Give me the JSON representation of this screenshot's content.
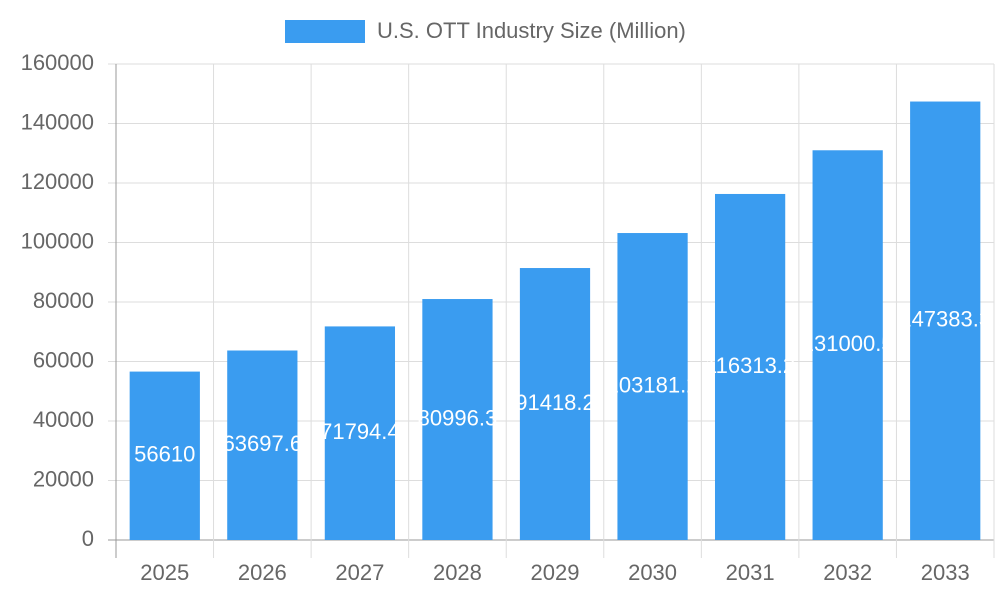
{
  "chart_data": {
    "type": "bar",
    "categories": [
      "2025",
      "2026",
      "2027",
      "2028",
      "2029",
      "2030",
      "2031",
      "2032",
      "2033"
    ],
    "series": [
      {
        "name": "U.S. OTT Industry Size (Million)",
        "color": "#3a9cf0",
        "values": [
          56610,
          63697.6,
          71794.4,
          80996.3,
          91418.2,
          103181.2,
          116313.2,
          131000.5,
          147383.3
        ]
      }
    ],
    "ylim": [
      0,
      160000
    ],
    "yticks": [
      0,
      20000,
      40000,
      60000,
      80000,
      100000,
      120000,
      140000,
      160000
    ],
    "grid": true,
    "legend": "top"
  }
}
